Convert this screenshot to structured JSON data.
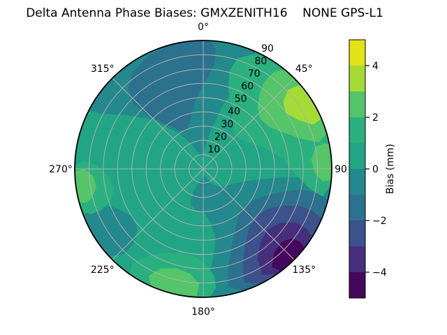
{
  "title": "Delta Antenna Phase Biases: GMXZENITH16    NONE GPS-L1",
  "figure_bg": "#ffffff",
  "chart_data": {
    "type": "heatmap",
    "projection": "polar",
    "title": "Delta Antenna Phase Biases: GMXZENITH16    NONE GPS-L1",
    "colormap": "viridis, 10 discrete contour levels",
    "levels": [
      -5,
      -4,
      -3,
      -2,
      -1,
      0,
      1,
      2,
      3,
      4,
      5
    ],
    "grid": {
      "radial_circles_every": 10,
      "spokes_every_deg": 45,
      "grid_color": "#b0b0b0",
      "outline_color": "#000000"
    },
    "theta_labels": [
      {
        "az": 0,
        "label": "0°"
      },
      {
        "az": 45,
        "label": "45°"
      },
      {
        "az": 90,
        "label": "90",
        "offset": 13
      },
      {
        "az": 135,
        "label": "135°"
      },
      {
        "az": 180,
        "label": "180°"
      },
      {
        "az": 225,
        "label": "225°"
      },
      {
        "az": 270,
        "label": "270°"
      },
      {
        "az": 315,
        "label": "315°"
      }
    ],
    "r_tick_values": [
      10,
      20,
      30,
      40,
      50,
      60,
      70,
      80,
      90
    ],
    "r_tick_labels": [
      "10",
      "20",
      "30",
      "40",
      "50",
      "60",
      "70",
      "80",
      "90"
    ],
    "r_label_angle_deg": 28,
    "colorbar": {
      "label": "Bias (mm)",
      "range": [
        -5,
        5
      ],
      "ticks": [
        {
          "value": 4,
          "label": "4"
        },
        {
          "value": 2,
          "label": "2"
        },
        {
          "value": 0,
          "label": "0"
        },
        {
          "value": -2,
          "label": "−2"
        },
        {
          "value": -4,
          "label": "−4"
        }
      ],
      "segment_colors_top_to_bottom": [
        "#e2e418",
        "#a5db36",
        "#54c568",
        "#2ab07f",
        "#21a585",
        "#23898d",
        "#2c718e",
        "#3b528b",
        "#46307e",
        "#46085c"
      ]
    },
    "estimated_values_mm": [
      {
        "azimuth_deg": 0,
        "zenith30": -1.5,
        "zenith60": -2.5,
        "zenith85": -1.5
      },
      {
        "azimuth_deg": 45,
        "zenith30": 1.5,
        "zenith60": 2.5,
        "zenith85": 3.5
      },
      {
        "azimuth_deg": 90,
        "zenith30": 0.5,
        "zenith60": 1.5,
        "zenith85": 2.5
      },
      {
        "azimuth_deg": 135,
        "zenith30": -0.5,
        "zenith60": -2.5,
        "zenith85": -4.5
      },
      {
        "azimuth_deg": 180,
        "zenith30": 0.5,
        "zenith60": 0.5,
        "zenith85": 2.5
      },
      {
        "azimuth_deg": 225,
        "zenith30": 0.5,
        "zenith60": 0.5,
        "zenith85": -0.5
      },
      {
        "azimuth_deg": 270,
        "zenith30": 0.5,
        "zenith60": 1.5,
        "zenith85": 2.5
      },
      {
        "azimuth_deg": 315,
        "zenith30": -0.5,
        "zenith60": -2.5,
        "zenith85": -0.5
      },
      {
        "azimuth_deg": "center",
        "zenith30": 0.5,
        "zenith60": null,
        "zenith85": null
      }
    ],
    "base_bin": {
      "value_range": [
        0,
        1
      ],
      "color": "#21a585"
    },
    "regions": [
      {
        "name": "top-neg1",
        "value_range": [
          -1,
          0
        ],
        "color": "#23898d",
        "points": [
          [
            297,
            90
          ],
          [
            312,
            90
          ],
          [
            326,
            90
          ],
          [
            340,
            90
          ],
          [
            354,
            90
          ],
          [
            8,
            90
          ],
          [
            24,
            90
          ],
          [
            24,
            76
          ],
          [
            21,
            62
          ],
          [
            17,
            46
          ],
          [
            12,
            30
          ],
          [
            5,
            16
          ],
          [
            356,
            8
          ],
          [
            346,
            10
          ],
          [
            336,
            18
          ],
          [
            326,
            30
          ],
          [
            314,
            50
          ],
          [
            304,
            68
          ],
          [
            298,
            82
          ]
        ]
      },
      {
        "name": "lowerright-neg1",
        "value_range": [
          -1,
          0
        ],
        "color": "#23898d",
        "points": [
          [
            97,
            90
          ],
          [
            110,
            90
          ],
          [
            124,
            90
          ],
          [
            138,
            90
          ],
          [
            152,
            90
          ],
          [
            165,
            90
          ],
          [
            177,
            90
          ],
          [
            178,
            80
          ],
          [
            174,
            64
          ],
          [
            170,
            50
          ],
          [
            172,
            38
          ],
          [
            180,
            30
          ],
          [
            190,
            30
          ],
          [
            200,
            26
          ],
          [
            204,
            18
          ],
          [
            196,
            9
          ],
          [
            180,
            5
          ],
          [
            163,
            6
          ],
          [
            150,
            12
          ],
          [
            136,
            18
          ],
          [
            120,
            22
          ],
          [
            107,
            30
          ],
          [
            100,
            42
          ],
          [
            96,
            56
          ],
          [
            95,
            70
          ],
          [
            95,
            82
          ]
        ]
      },
      {
        "name": "lowerleft-neg1",
        "value_range": [
          -1,
          0
        ],
        "color": "#23898d",
        "points": [
          [
            227,
            90
          ],
          [
            237,
            90
          ],
          [
            248,
            90
          ],
          [
            252,
            84
          ],
          [
            250,
            74
          ],
          [
            244,
            65
          ],
          [
            236,
            60
          ],
          [
            228,
            62
          ],
          [
            223,
            71
          ],
          [
            223,
            81
          ]
        ]
      },
      {
        "name": "upperleft-neg2",
        "value_range": [
          -2,
          -1
        ],
        "color": "#2c718e",
        "points": [
          [
            345,
            90
          ],
          [
            355,
            90
          ],
          [
            3,
            90
          ],
          [
            6,
            84
          ],
          [
            6,
            74
          ],
          [
            3,
            64
          ],
          [
            357,
            54
          ],
          [
            351,
            44
          ],
          [
            344,
            34
          ],
          [
            336,
            29
          ],
          [
            327,
            33
          ],
          [
            319,
            43
          ],
          [
            314,
            55
          ],
          [
            313,
            67
          ],
          [
            317,
            77
          ],
          [
            324,
            84
          ],
          [
            334,
            88
          ]
        ]
      },
      {
        "name": "se-neg2",
        "value_range": [
          -2,
          -1
        ],
        "color": "#2c718e",
        "points": [
          [
            104,
            90
          ],
          [
            118,
            90
          ],
          [
            133,
            90
          ],
          [
            148,
            90
          ],
          [
            162,
            90
          ],
          [
            168,
            84
          ],
          [
            166,
            72
          ],
          [
            160,
            58
          ],
          [
            150,
            46
          ],
          [
            138,
            39
          ],
          [
            125,
            40
          ],
          [
            114,
            47
          ],
          [
            106,
            58
          ],
          [
            102,
            70
          ],
          [
            102,
            81
          ]
        ]
      },
      {
        "name": "se-neg3",
        "value_range": [
          -3,
          -2
        ],
        "color": "#3b528b",
        "points": [
          [
            113,
            90
          ],
          [
            126,
            90
          ],
          [
            140,
            90
          ],
          [
            153,
            90
          ],
          [
            160,
            85
          ],
          [
            158,
            74
          ],
          [
            152,
            62
          ],
          [
            143,
            53
          ],
          [
            132,
            50
          ],
          [
            122,
            53
          ],
          [
            115,
            61
          ],
          [
            111,
            72
          ],
          [
            111,
            82
          ]
        ]
      },
      {
        "name": "se-neg4",
        "value_range": [
          -4,
          -3
        ],
        "color": "#46307e",
        "points": [
          [
            122,
            90
          ],
          [
            133,
            90
          ],
          [
            145,
            90
          ],
          [
            151,
            85
          ],
          [
            149,
            74
          ],
          [
            142,
            65
          ],
          [
            133,
            62
          ],
          [
            125,
            66
          ],
          [
            120,
            75
          ],
          [
            120,
            84
          ]
        ]
      },
      {
        "name": "se-neg5",
        "value_range": [
          -5,
          -4
        ],
        "color": "#46085c",
        "points": [
          [
            128,
            90
          ],
          [
            136,
            90
          ],
          [
            143,
            90
          ],
          [
            145,
            84
          ],
          [
            140,
            77
          ],
          [
            133,
            75
          ],
          [
            128,
            79
          ],
          [
            127,
            85
          ]
        ]
      },
      {
        "name": "ne-pos2",
        "value_range": [
          1,
          2
        ],
        "color": "#2ab07f",
        "points": [
          [
            29,
            90
          ],
          [
            42,
            90
          ],
          [
            56,
            90
          ],
          [
            70,
            90
          ],
          [
            84,
            90
          ],
          [
            97,
            90
          ],
          [
            103,
            86
          ],
          [
            101,
            77
          ],
          [
            96,
            68
          ],
          [
            90,
            61
          ],
          [
            82,
            56
          ],
          [
            72,
            46
          ],
          [
            62,
            38
          ],
          [
            51,
            33
          ],
          [
            40,
            33
          ],
          [
            31,
            39
          ],
          [
            23,
            49
          ],
          [
            17,
            60
          ],
          [
            15,
            71
          ],
          [
            17,
            81
          ],
          [
            23,
            87
          ]
        ]
      },
      {
        "name": "bottom-pos2",
        "value_range": [
          1,
          2
        ],
        "color": "#2ab07f",
        "points": [
          [
            177,
            90
          ],
          [
            190,
            90
          ],
          [
            203,
            90
          ],
          [
            215,
            90
          ],
          [
            217,
            83
          ],
          [
            213,
            73
          ],
          [
            205,
            65
          ],
          [
            195,
            61
          ],
          [
            185,
            62
          ],
          [
            178,
            67
          ],
          [
            174,
            76
          ],
          [
            174,
            84
          ]
        ]
      },
      {
        "name": "left-pos2",
        "value_range": [
          1,
          2
        ],
        "color": "#2ab07f",
        "points": [
          [
            251,
            90
          ],
          [
            261,
            90
          ],
          [
            271,
            90
          ],
          [
            274,
            84
          ],
          [
            272,
            75
          ],
          [
            266,
            67
          ],
          [
            258,
            64
          ],
          [
            251,
            68
          ],
          [
            248,
            77
          ],
          [
            248,
            85
          ]
        ]
      },
      {
        "name": "ne-pos3",
        "value_range": [
          2,
          3
        ],
        "color": "#54c568",
        "points": [
          [
            39,
            90
          ],
          [
            51,
            90
          ],
          [
            63,
            90
          ],
          [
            74,
            90
          ],
          [
            77,
            83
          ],
          [
            73,
            72
          ],
          [
            66,
            62
          ],
          [
            58,
            55
          ],
          [
            49,
            53
          ],
          [
            42,
            57
          ],
          [
            37,
            65
          ],
          [
            35,
            75
          ],
          [
            36,
            84
          ]
        ]
      },
      {
        "name": "right-pos3",
        "value_range": [
          2,
          3
        ],
        "color": "#54c568",
        "points": [
          [
            79,
            90
          ],
          [
            87,
            90
          ],
          [
            95,
            90
          ],
          [
            96,
            84
          ],
          [
            92,
            78
          ],
          [
            85,
            76
          ],
          [
            79,
            80
          ],
          [
            78,
            86
          ]
        ]
      },
      {
        "name": "bottom-pos3",
        "value_range": [
          2,
          3
        ],
        "color": "#54c568",
        "points": [
          [
            183,
            90
          ],
          [
            193,
            90
          ],
          [
            204,
            90
          ],
          [
            207,
            84
          ],
          [
            203,
            76
          ],
          [
            195,
            72
          ],
          [
            187,
            74
          ],
          [
            182,
            81
          ]
        ]
      },
      {
        "name": "left-pos3",
        "value_range": [
          2,
          3
        ],
        "color": "#54c568",
        "points": [
          [
            255,
            90
          ],
          [
            262,
            90
          ],
          [
            269,
            90
          ],
          [
            270,
            83
          ],
          [
            266,
            77
          ],
          [
            260,
            76
          ],
          [
            255,
            81
          ],
          [
            254,
            86
          ]
        ]
      },
      {
        "name": "ne-pos4",
        "value_range": [
          3,
          4
        ],
        "color": "#a5db36",
        "points": [
          [
            49,
            90
          ],
          [
            58,
            90
          ],
          [
            67,
            90
          ],
          [
            68,
            83
          ],
          [
            63,
            75
          ],
          [
            56,
            70
          ],
          [
            50,
            73
          ],
          [
            47,
            81
          ]
        ]
      }
    ]
  }
}
